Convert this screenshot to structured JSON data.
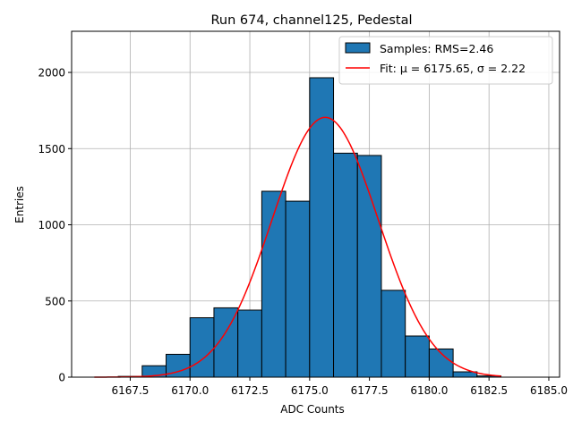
{
  "chart_data": {
    "type": "bar",
    "title": "Run 674, channel125, Pedestal",
    "xlabel": "ADC Counts",
    "ylabel": "Entries",
    "xlim": [
      6165.05,
      6185.45
    ],
    "ylim": [
      0,
      2270
    ],
    "grid": true,
    "legend_position": "top-right",
    "x_ticks": [
      6167.5,
      6170.0,
      6172.5,
      6175.0,
      6177.5,
      6180.0,
      6182.5,
      6185.0
    ],
    "x_tick_labels": [
      "6167.5",
      "6170.0",
      "6172.5",
      "6175.0",
      "6177.5",
      "6180.0",
      "6182.5",
      "6185.0"
    ],
    "y_ticks": [
      0,
      500,
      1000,
      1500,
      2000
    ],
    "y_tick_labels": [
      "0",
      "500",
      "1000",
      "1500",
      "2000"
    ],
    "histogram": {
      "name": "Samples: RMS=2.46",
      "color": "#1f77b4",
      "edge_color": "#000000",
      "bin_edges": [
        6166,
        6167,
        6168,
        6169,
        6170,
        6171,
        6172,
        6173,
        6174,
        6175,
        6176,
        6177,
        6178,
        6179,
        6180,
        6181,
        6182,
        6183
      ],
      "counts": [
        0,
        5,
        75,
        150,
        390,
        455,
        440,
        1220,
        1155,
        1965,
        1470,
        1455,
        570,
        270,
        185,
        35,
        8
      ]
    },
    "fit": {
      "name": "Fit: μ = 6175.65, σ = 2.22",
      "color": "#ff0000",
      "mu": 6175.65,
      "sigma": 2.22,
      "amplitude": 1705,
      "x_range": [
        6166,
        6183
      ]
    }
  }
}
